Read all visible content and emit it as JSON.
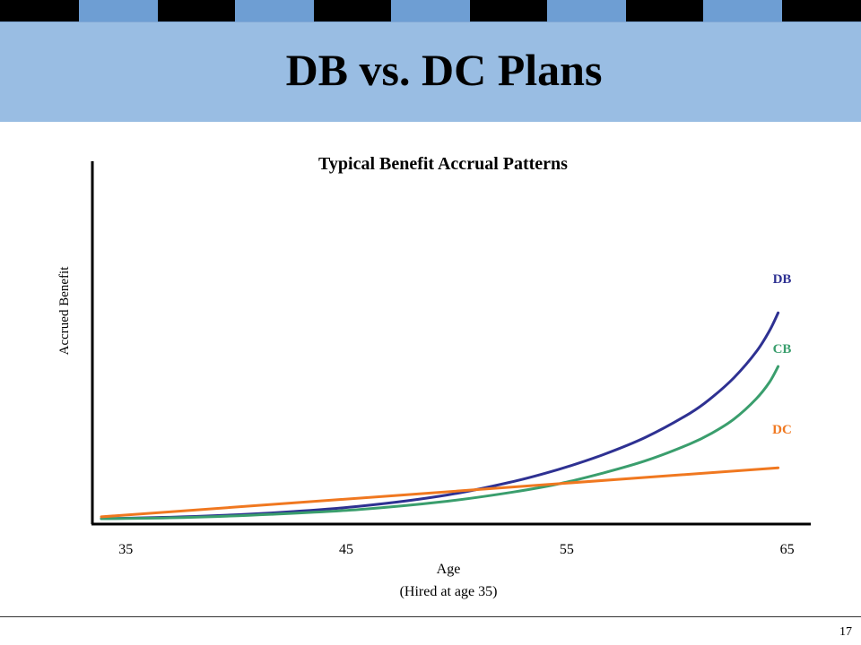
{
  "slide": {
    "title": "DB vs. DC Plans",
    "page_number": "17"
  },
  "chart_data": {
    "type": "line",
    "title": "Typical Benefit Accrual Patterns",
    "xlabel": "Age",
    "xlabel_sub": "(Hired at age 35)",
    "ylabel": "Accrued Benefit",
    "x_ticks": [
      35,
      45,
      55,
      65
    ],
    "xlim": [
      34.3,
      65.3
    ],
    "ylim": [
      0,
      100
    ],
    "y_ticks_shown": false,
    "grid": false,
    "legend": "inline labels at line ends",
    "series": [
      {
        "name": "DB",
        "color": "#2e3192",
        "x": [
          34.3,
          38,
          42,
          46,
          50,
          53,
          55,
          57,
          59,
          61,
          62,
          63,
          64,
          64.6,
          65
        ],
        "y": [
          0,
          0.8,
          2.5,
          5.4,
          10.3,
          16.2,
          21.3,
          27.6,
          35.4,
          45.8,
          52.7,
          61.3,
          72.4,
          81.5,
          89.4
        ]
      },
      {
        "name": "CB",
        "color": "#3a9e6d",
        "x": [
          34.3,
          38,
          42,
          46,
          50,
          53,
          55,
          57,
          59,
          61,
          62,
          63,
          64,
          64.6,
          65
        ],
        "y": [
          0,
          0.5,
          1.9,
          4.0,
          7.6,
          11.6,
          15.0,
          19.7,
          25.2,
          32.5,
          37.2,
          43.3,
          52.0,
          59.2,
          66.1
        ]
      },
      {
        "name": "DC",
        "color": "#f07820",
        "x": [
          34.3,
          65
        ],
        "y": [
          0.8,
          22.1
        ]
      }
    ]
  }
}
